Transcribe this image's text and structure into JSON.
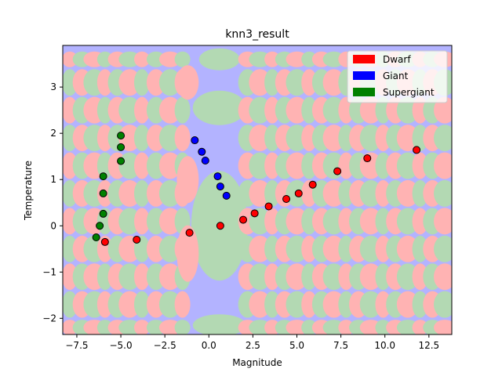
{
  "chart_data": {
    "type": "scatter",
    "title": "knn3_result",
    "xlabel": "Magnitude",
    "ylabel": "Temperature",
    "xlim": [
      -8.3,
      13.8
    ],
    "ylim": [
      -2.35,
      3.9
    ],
    "xticks": [
      -7.5,
      -5.0,
      -2.5,
      0.0,
      2.5,
      5.0,
      7.5,
      10.0,
      12.5
    ],
    "xtick_labels": [
      "−7.5",
      "−5.0",
      "−2.5",
      "0.0",
      "2.5",
      "5.0",
      "7.5",
      "10.0",
      "12.5"
    ],
    "yticks": [
      -2,
      -1,
      0,
      1,
      2,
      3
    ],
    "ytick_labels": [
      "−2",
      "−1",
      "0",
      "1",
      "2",
      "3"
    ],
    "legend_position": "top-right",
    "background": "decision-regions",
    "series": [
      {
        "name": "Dwarf",
        "color": "#ff0000",
        "region_color": "#ffb3b3",
        "points": [
          [
            -5.9,
            -0.35
          ],
          [
            -4.1,
            -0.3
          ],
          [
            -1.1,
            -0.15
          ],
          [
            0.65,
            0.0
          ],
          [
            1.95,
            0.13
          ],
          [
            2.6,
            0.27
          ],
          [
            3.4,
            0.42
          ],
          [
            4.4,
            0.58
          ],
          [
            5.1,
            0.7
          ],
          [
            5.9,
            0.89
          ],
          [
            7.3,
            1.18
          ],
          [
            9.0,
            1.46
          ],
          [
            11.8,
            1.64
          ]
        ]
      },
      {
        "name": "Giant",
        "color": "#0000ff",
        "region_color": "#b3b3ff",
        "points": [
          [
            -0.8,
            1.85
          ],
          [
            -0.4,
            1.6
          ],
          [
            -0.2,
            1.41
          ],
          [
            0.5,
            1.07
          ],
          [
            0.65,
            0.85
          ],
          [
            1.0,
            0.65
          ]
        ]
      },
      {
        "name": "Supergiant",
        "color": "#008000",
        "region_color": "#b3d9b3",
        "points": [
          [
            -5.0,
            1.95
          ],
          [
            -5.0,
            1.7
          ],
          [
            -5.0,
            1.4
          ],
          [
            -6.0,
            1.07
          ],
          [
            -6.0,
            0.7
          ],
          [
            -6.0,
            0.26
          ],
          [
            -6.2,
            0.0
          ],
          [
            -6.4,
            -0.25
          ]
        ]
      }
    ]
  }
}
